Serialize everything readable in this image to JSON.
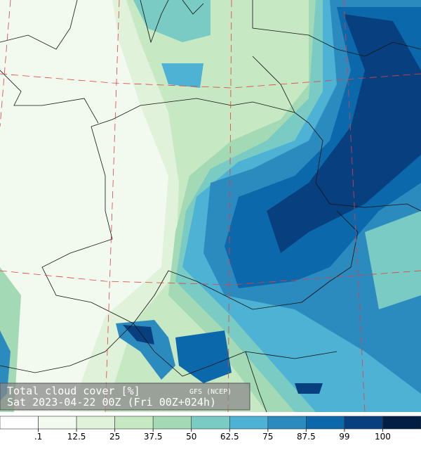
{
  "caption": {
    "title": "Total cloud cover  [%]",
    "source": "GFS (NCEP)",
    "time": "Sat 2023-04-22 00Z (Fri 00Z+024h)"
  },
  "colorbar": {
    "colors": [
      "#ffffff",
      "#f2f9ee",
      "#e0f2d9",
      "#c6e8c2",
      "#a3d9b5",
      "#79cbc4",
      "#4db2d3",
      "#2c8bbe",
      "#0a68ab",
      "#08407f",
      "#031e45"
    ],
    "ticks": [
      {
        "value": 0.1,
        "label": ".1"
      },
      12.5,
      25,
      37.5,
      50,
      62.5,
      75,
      87.5,
      99,
      100
    ]
  }
}
